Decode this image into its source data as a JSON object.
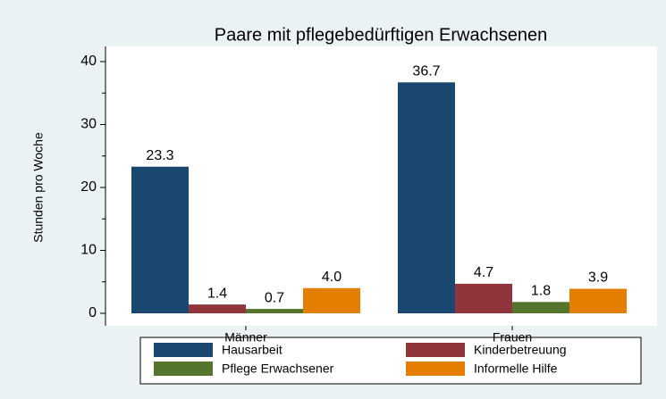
{
  "chart_data": {
    "type": "bar",
    "title": "Paare mit pflegebedürftigen Erwachsenen",
    "y_label": "Stunden pro Woche",
    "categories": [
      "Männer",
      "Frauen"
    ],
    "series": [
      {
        "name": "Hausarbeit",
        "color": "#1a476f",
        "values": [
          23.3,
          36.7
        ],
        "value_labels": [
          "23.3",
          "36.7"
        ]
      },
      {
        "name": "Kinderbetreuung",
        "color": "#90353b",
        "values": [
          1.4,
          4.7
        ],
        "value_labels": [
          "1.4",
          "4.7"
        ]
      },
      {
        "name": "Pflege Erwachsener",
        "color": "#55752f",
        "values": [
          0.7,
          1.8
        ],
        "value_labels": [
          "0.7",
          "1.8"
        ]
      },
      {
        "name": "Informelle Hilfe",
        "color": "#e37e00",
        "values": [
          4.0,
          3.9
        ],
        "value_labels": [
          "4.0",
          "3.9"
        ]
      }
    ],
    "ylim": [
      0,
      40
    ],
    "yticks": [
      0,
      10,
      20,
      30,
      40
    ],
    "yminorticks": [
      5,
      15,
      25,
      35
    ]
  }
}
